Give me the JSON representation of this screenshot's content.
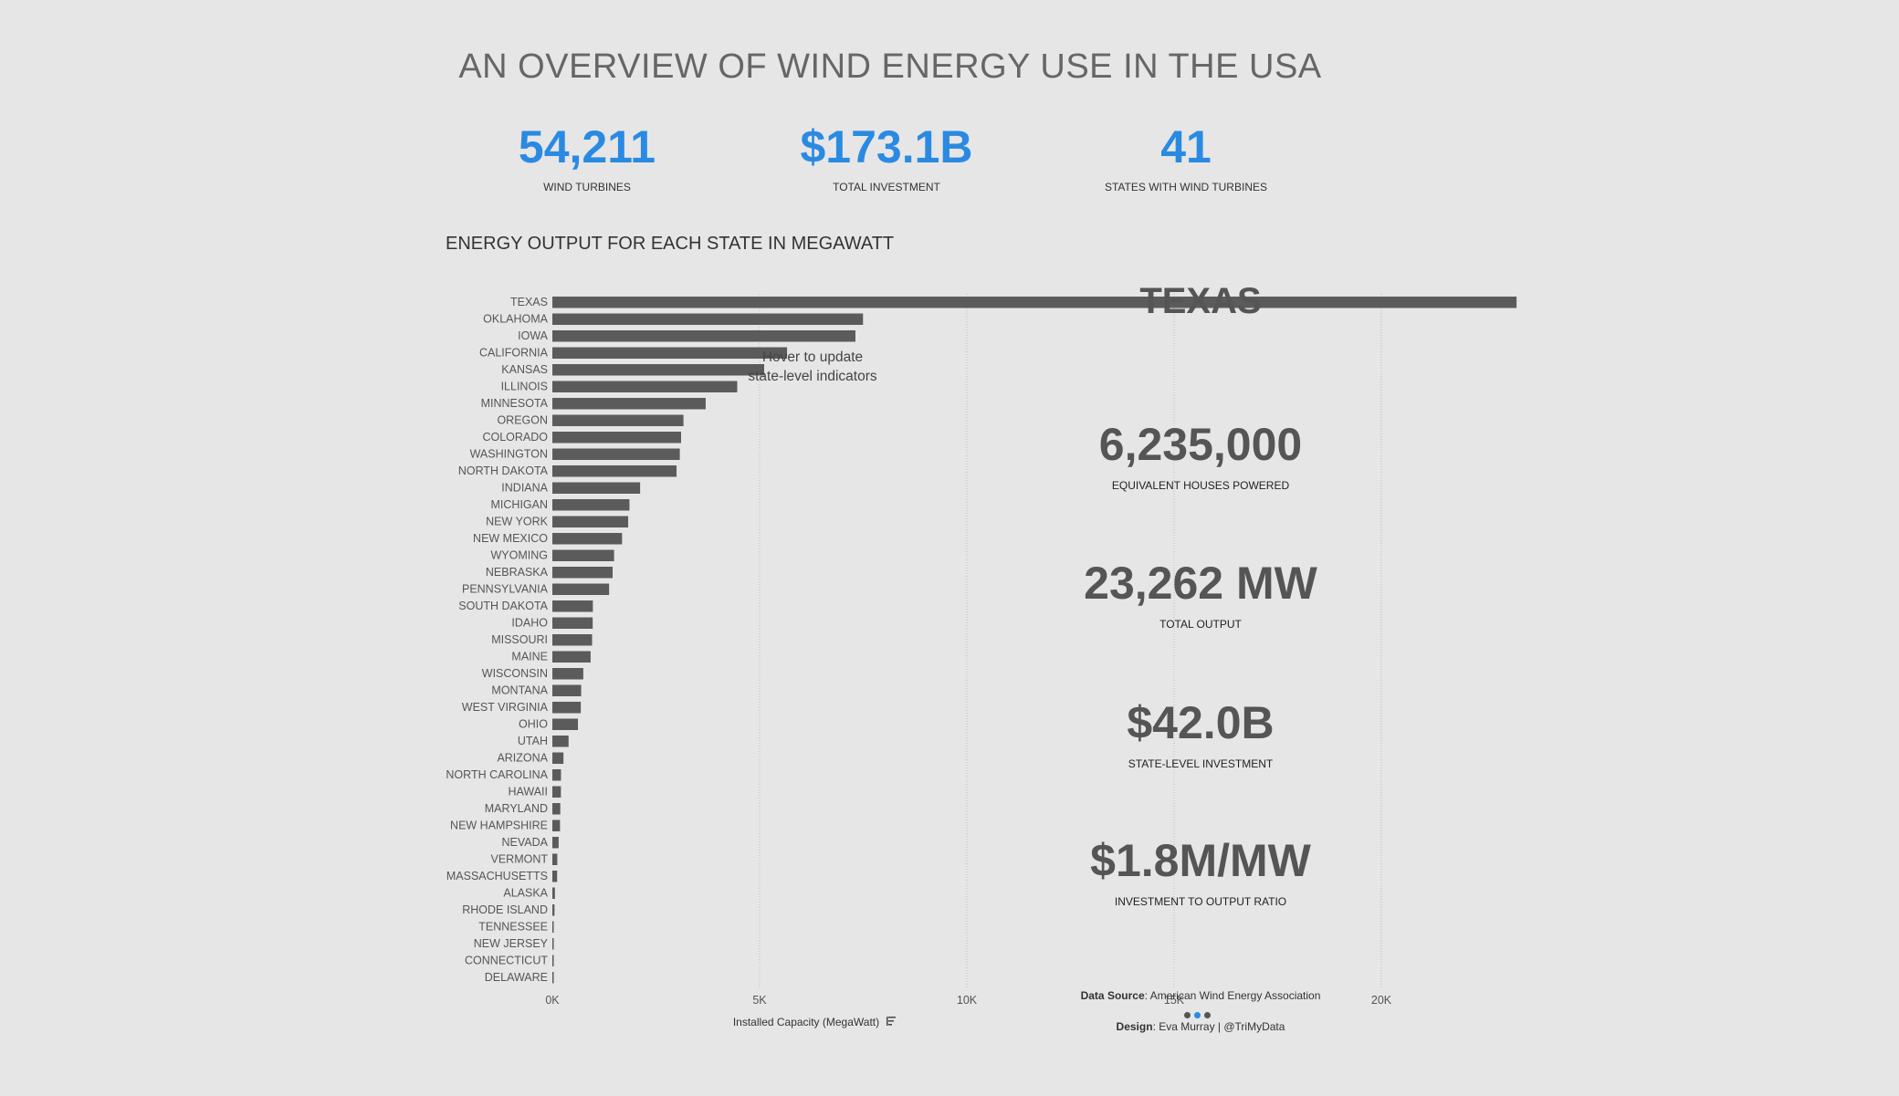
{
  "title": "AN OVERVIEW OF WIND ENERGY USE IN THE USA",
  "kpis": [
    {
      "value": "54,211",
      "label": "WIND TURBINES"
    },
    {
      "value": "$173.1B",
      "label": "TOTAL INVESTMENT"
    },
    {
      "value": "41",
      "label": "STATES WITH WIND TURBINES"
    }
  ],
  "section_title": "ENERGY OUTPUT FOR EACH STATE IN MEGAWATT",
  "hover_hint": [
    "Hover to update",
    "state-level indicators"
  ],
  "chart_data": {
    "type": "bar",
    "orientation": "horizontal",
    "title": "ENERGY OUTPUT FOR EACH STATE IN MEGAWATT",
    "xlabel": "Installed Capacity (MegaWatt)",
    "ylabel": "",
    "xlim": [
      0,
      24000
    ],
    "ticks": [
      0,
      5000,
      10000,
      15000,
      20000
    ],
    "tick_labels": [
      "0K",
      "5K",
      "10K",
      "15K",
      "20K"
    ],
    "grid": true,
    "categories": [
      "TEXAS",
      "OKLAHOMA",
      "IOWA",
      "CALIFORNIA",
      "KANSAS",
      "ILLINOIS",
      "MINNESOTA",
      "OREGON",
      "COLORADO",
      "WASHINGTON",
      "NORTH DAKOTA",
      "INDIANA",
      "MICHIGAN",
      "NEW YORK",
      "NEW MEXICO",
      "WYOMING",
      "NEBRASKA",
      "PENNSYLVANIA",
      "SOUTH DAKOTA",
      "IDAHO",
      "MISSOURI",
      "MAINE",
      "WISCONSIN",
      "MONTANA",
      "WEST VIRGINIA",
      "OHIO",
      "UTAH",
      "ARIZONA",
      "NORTH CAROLINA",
      "HAWAII",
      "MARYLAND",
      "NEW HAMPSHIRE",
      "NEVADA",
      "VERMONT",
      "MASSACHUSETTS",
      "ALASKA",
      "RHODE ISLAND",
      "TENNESSEE",
      "NEW JERSEY",
      "CONNECTICUT",
      "DELAWARE"
    ],
    "values": [
      23262,
      7495,
      7312,
      5662,
      5110,
      4460,
      3699,
      3163,
      3106,
      3075,
      2996,
      2117,
      1860,
      1829,
      1682,
      1489,
      1454,
      1369,
      977,
      973,
      959,
      923,
      746,
      695,
      686,
      617,
      391,
      268,
      208,
      206,
      191,
      185,
      152,
      119,
      115,
      62,
      52,
      29,
      9,
      5,
      2
    ]
  },
  "selected": {
    "state": "TEXAS",
    "houses": "6,235,000",
    "houses_label": "EQUIVALENT HOUSES POWERED",
    "output": "23,262 MW",
    "output_label": "TOTAL OUTPUT",
    "investment": "$42.0B",
    "investment_label": "STATE-LEVEL INVESTMENT",
    "ratio": "$1.8M/MW",
    "ratio_label": "INVESTMENT TO OUTPUT RATIO"
  },
  "footer": {
    "source_key": "Data Source",
    "source_value": ": American Wind Energy Association",
    "design_key": "Design",
    "design_value": ": Eva Murray | @TriMyData"
  },
  "colors": {
    "accent": "#2a8ae2",
    "bar": "#5b5b5b",
    "background": "#e6e6e6"
  }
}
